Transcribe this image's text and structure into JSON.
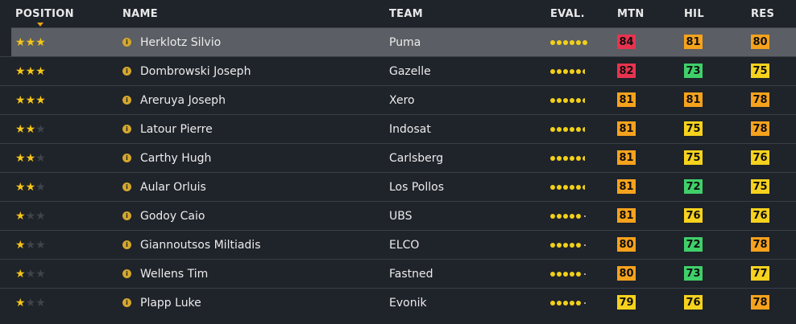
{
  "header": {
    "position": "POSITION",
    "name": "NAME",
    "team": "TEAM",
    "eval": "EVAL.",
    "mtn": "MTN",
    "hil": "HIL",
    "res": "RES"
  },
  "colors": {
    "red": "#e8334f",
    "orange": "#f7a21d",
    "yellow": "#f7d21d",
    "green": "#3fd06a",
    "star": "#f5c518"
  },
  "rows": [
    {
      "stars": 3,
      "name": "Herklotz Silvio",
      "team": "Puma",
      "eval": 6,
      "mtn": "84",
      "hil": "81",
      "res": "80",
      "mtn_c": "red",
      "hil_c": "orange",
      "res_c": "orange",
      "selected": true
    },
    {
      "stars": 3,
      "name": "Dombrowski Joseph",
      "team": "Gazelle",
      "eval": 5.5,
      "mtn": "82",
      "hil": "73",
      "res": "75",
      "mtn_c": "red",
      "hil_c": "green",
      "res_c": "yellow"
    },
    {
      "stars": 3,
      "name": "Areruya Joseph",
      "team": "Xero",
      "eval": 5.5,
      "mtn": "81",
      "hil": "81",
      "res": "78",
      "mtn_c": "orange",
      "hil_c": "orange",
      "res_c": "orange"
    },
    {
      "stars": 2,
      "name": "Latour Pierre",
      "team": "Indosat",
      "eval": 5.5,
      "mtn": "81",
      "hil": "75",
      "res": "78",
      "mtn_c": "orange",
      "hil_c": "yellow",
      "res_c": "orange"
    },
    {
      "stars": 2,
      "name": "Carthy Hugh",
      "team": "Carlsberg",
      "eval": 5.5,
      "mtn": "81",
      "hil": "75",
      "res": "76",
      "mtn_c": "orange",
      "hil_c": "yellow",
      "res_c": "yellow"
    },
    {
      "stars": 2,
      "name": "Aular Orluis",
      "team": "Los Pollos",
      "eval": 5.5,
      "mtn": "81",
      "hil": "72",
      "res": "75",
      "mtn_c": "orange",
      "hil_c": "green",
      "res_c": "yellow"
    },
    {
      "stars": 1,
      "name": "Godoy Caio",
      "team": "UBS",
      "eval": 5,
      "mtn": "81",
      "hil": "76",
      "res": "76",
      "mtn_c": "orange",
      "hil_c": "yellow",
      "res_c": "yellow"
    },
    {
      "stars": 1,
      "name": "Giannoutsos Miltiadis",
      "team": "ELCO",
      "eval": 5,
      "mtn": "80",
      "hil": "72",
      "res": "78",
      "mtn_c": "orange",
      "hil_c": "green",
      "res_c": "orange"
    },
    {
      "stars": 1,
      "name": "Wellens Tim",
      "team": "Fastned",
      "eval": 5,
      "mtn": "80",
      "hil": "73",
      "res": "77",
      "mtn_c": "orange",
      "hil_c": "green",
      "res_c": "yellow"
    },
    {
      "stars": 1,
      "name": "Plapp Luke",
      "team": "Evonik",
      "eval": 5,
      "mtn": "79",
      "hil": "76",
      "res": "78",
      "mtn_c": "yellow",
      "hil_c": "yellow",
      "res_c": "orange"
    }
  ]
}
